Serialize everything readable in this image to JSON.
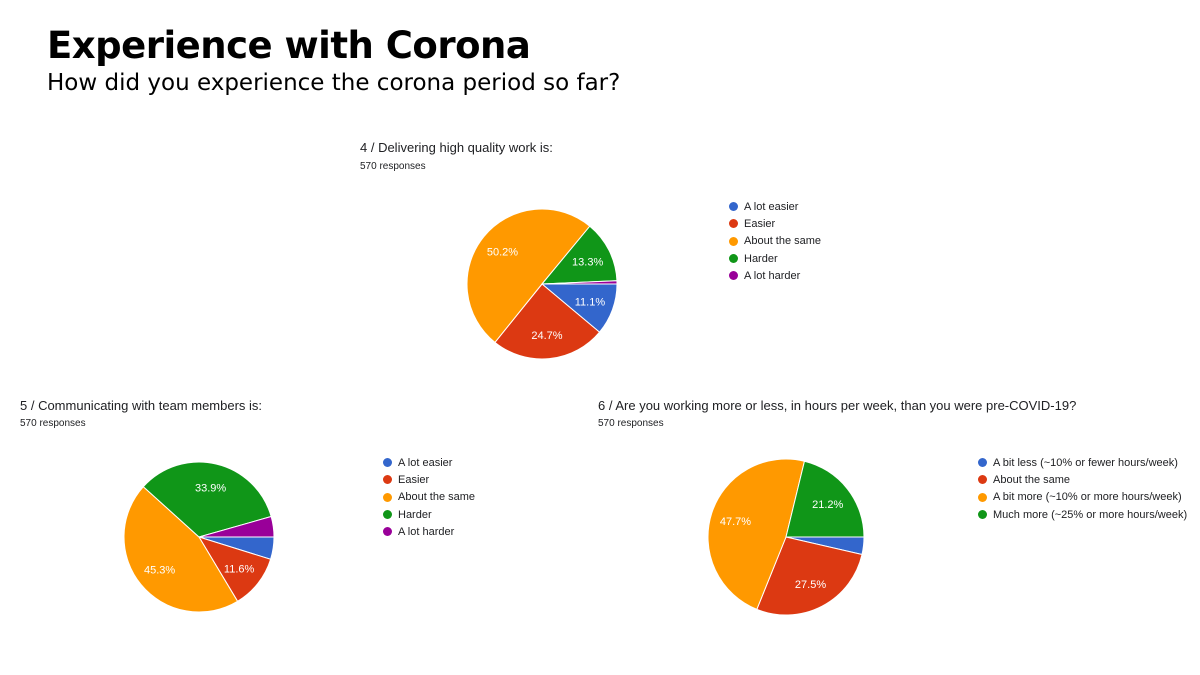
{
  "slide": {
    "title": "Experience with Corona",
    "subtitle": "How did you experience the corona period so far?"
  },
  "chart_data": [
    {
      "type": "pie",
      "title": "4 / Delivering high quality work is:",
      "subtitle": "570 responses",
      "categories": [
        "A lot easier",
        "Easier",
        "About the same",
        "Harder",
        "A lot harder"
      ],
      "values": [
        11.1,
        24.7,
        50.2,
        13.3,
        0.7
      ],
      "labels": [
        "11.1%",
        "24.7%",
        "50.2%",
        "13.3%",
        ""
      ],
      "colors": [
        "#3366cc",
        "#dc3912",
        "#ff9900",
        "#109618",
        "#990099"
      ],
      "legend": "right"
    },
    {
      "type": "pie",
      "title": "5 / Communicating with team members is:",
      "subtitle": "570 responses",
      "categories": [
        "A lot easier",
        "Easier",
        "About the same",
        "Harder",
        "A lot harder"
      ],
      "values": [
        4.8,
        11.6,
        45.3,
        33.9,
        4.4
      ],
      "labels": [
        "",
        "11.6%",
        "45.3%",
        "33.9%",
        ""
      ],
      "colors": [
        "#3366cc",
        "#dc3912",
        "#ff9900",
        "#109618",
        "#990099"
      ],
      "legend": "right"
    },
    {
      "type": "pie",
      "title": "6 / Are you working more or less, in hours per week, than you were pre-COVID-19?",
      "subtitle": "570 responses",
      "categories": [
        "A bit less (~10% or fewer hours/week)",
        "About the same",
        "A bit more (~10% or more hours/week)",
        "Much more (~25% or more hours/week)"
      ],
      "values": [
        3.6,
        27.5,
        47.7,
        21.2
      ],
      "labels": [
        "",
        "27.5%",
        "47.7%",
        "21.2%"
      ],
      "colors": [
        "#3366cc",
        "#dc3912",
        "#ff9900",
        "#109618"
      ],
      "legend": "right"
    }
  ]
}
